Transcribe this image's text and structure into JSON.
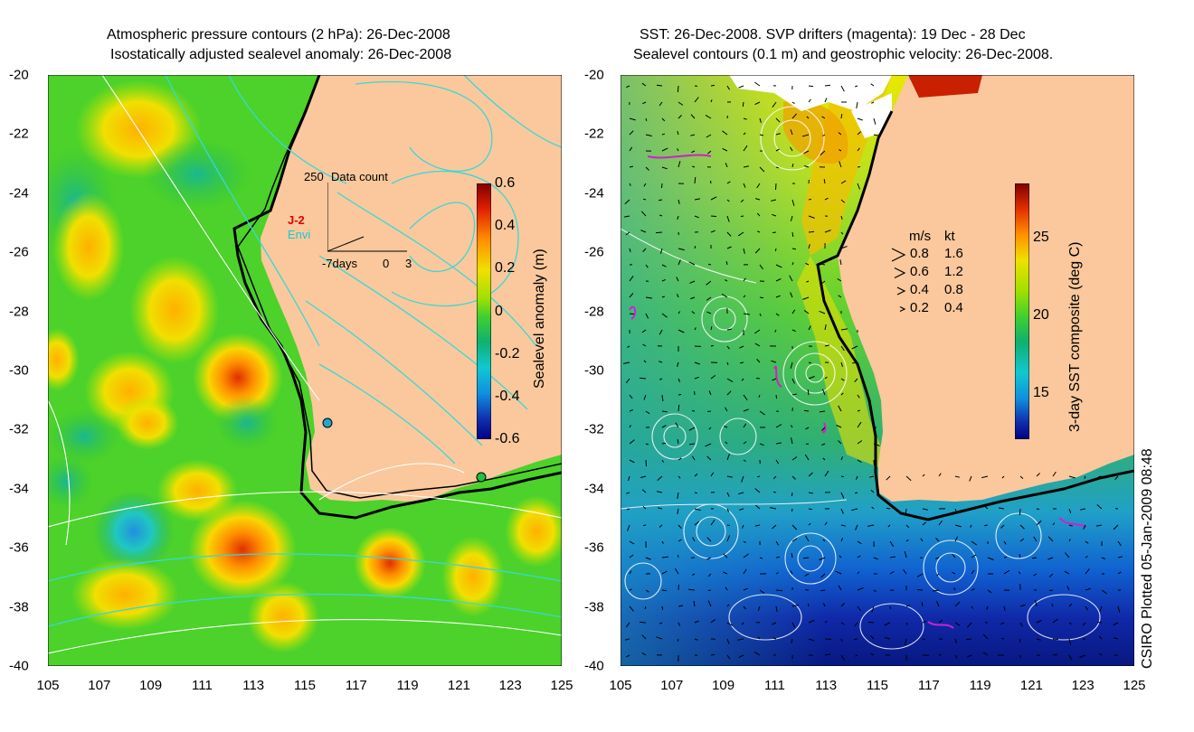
{
  "left_panel": {
    "title_line1": "Atmospheric pressure contours (2 hPa): 26-Dec-2008",
    "title_line2": "Isostatically adjusted sealevel anomaly: 26-Dec-2008",
    "colorbar": {
      "label": "Sealevel anomaly (m)",
      "ticks": [
        "0.6",
        "0.4",
        "0.2",
        "0",
        "-0.2",
        "-0.4",
        "-0.6"
      ],
      "range": [
        -0.6,
        0.6
      ]
    },
    "inset": {
      "title": "Data count",
      "ymax_label": "250",
      "x_labels": [
        "-7days",
        "0",
        "3"
      ],
      "series": [
        {
          "name": "J-2",
          "color": "#e00000"
        },
        {
          "name": "Envi",
          "color": "#18c8d0"
        }
      ]
    }
  },
  "right_panel": {
    "title_line1": "SST: 26-Dec-2008. SVP drifters (magenta): 19 Dec - 28 Dec",
    "title_line2": "Sealevel contours (0.1 m) and geostrophic velocity: 26-Dec-2008.",
    "colorbar": {
      "label": "3-day SST composite (deg C)",
      "ticks": [
        "25",
        "20",
        "15"
      ],
      "range": [
        12,
        28.5
      ]
    },
    "velocity_legend": {
      "header_ms": "m/s",
      "header_kt": "kt",
      "rows": [
        {
          "ms": "0.8",
          "kt": "1.6"
        },
        {
          "ms": "0.6",
          "kt": "1.2"
        },
        {
          "ms": "0.4",
          "kt": "0.8"
        },
        {
          "ms": "0.2",
          "kt": "0.4"
        }
      ]
    }
  },
  "axes": {
    "x_ticks": [
      "105",
      "107",
      "109",
      "111",
      "113",
      "115",
      "117",
      "119",
      "121",
      "123",
      "125"
    ],
    "y_ticks": [
      "-20",
      "-22",
      "-24",
      "-26",
      "-28",
      "-30",
      "-32",
      "-34",
      "-36",
      "-38",
      "-40"
    ]
  },
  "footer": {
    "credit": "CSIRO Plotted 05-Jan-2009 08:48"
  },
  "colors": {
    "land": "#fac89c",
    "ocean_green": "#4cd22a",
    "contour_cyan": "#38d8d8",
    "contour_white": "#ffffff",
    "drifter_magenta": "#d020d0"
  }
}
